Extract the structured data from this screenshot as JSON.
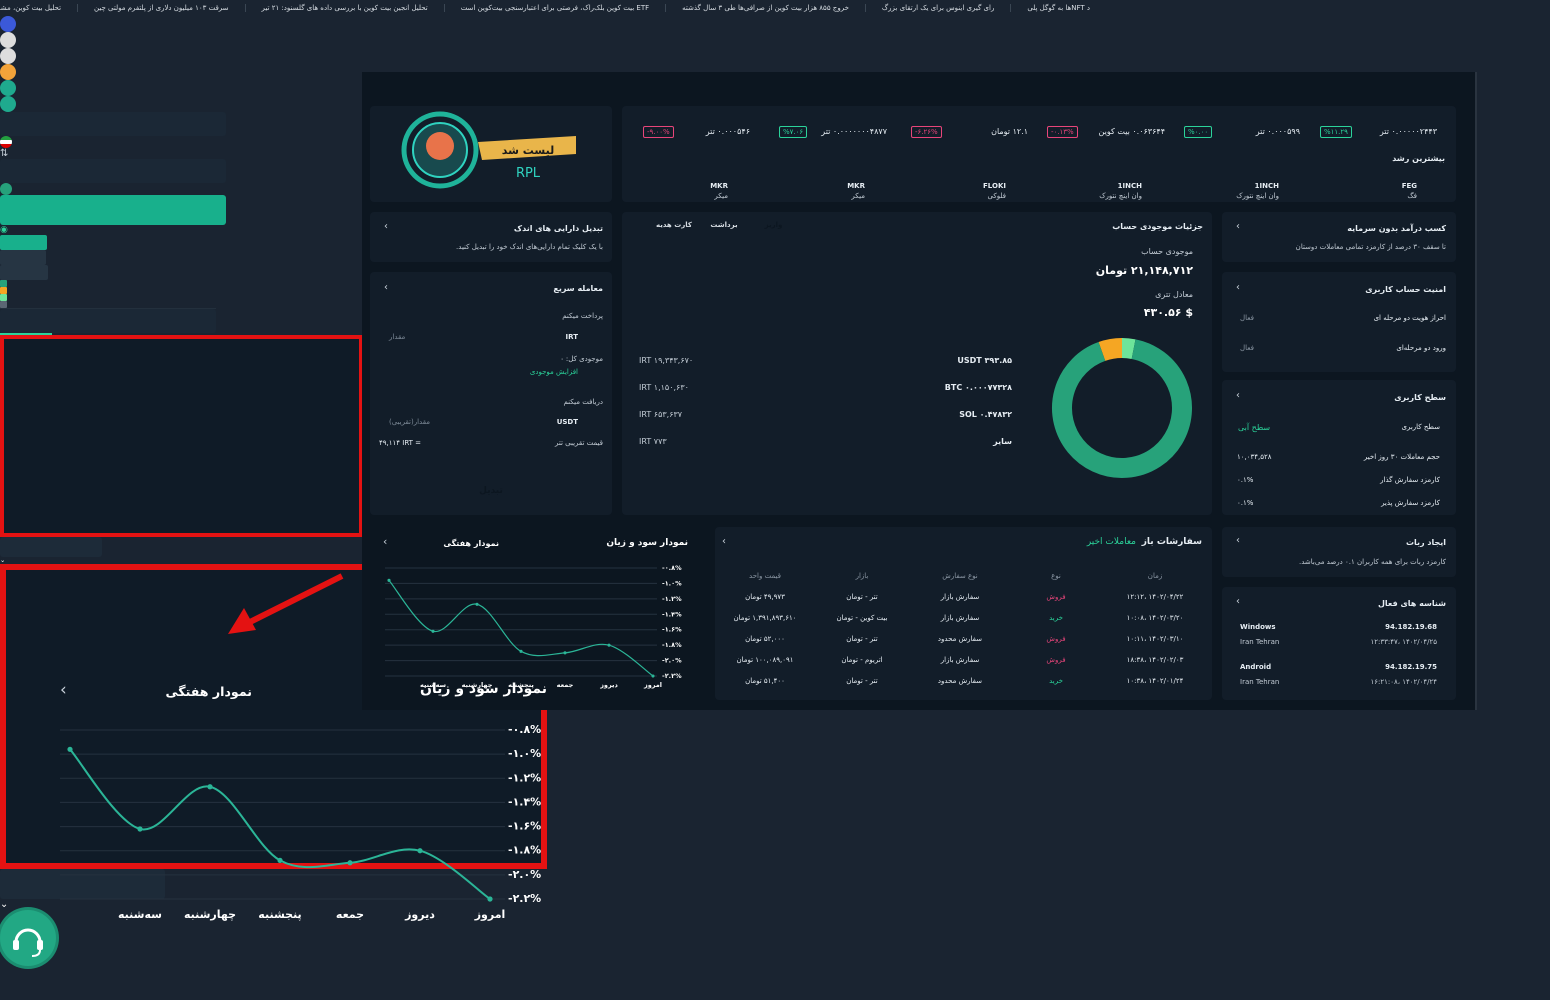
{
  "ticker": [
    "د NFTها به گوگل پلی",
    "رای گیری اینوس برای یک ارتقای بزرگ",
    "خروج ۸۵۵ هزار بیت کوین از صرافی‌ها طی ۳ سال گذشته",
    "ETF بیت کوین بلک‌راک، فرصتی برای اعتبارسنجی بیت‌کوین است",
    "تحلیل انجین بیت کوین با بررسی داده های گلسنود: ۲۱ تیر",
    "سرقت ۱۰۳ میلیون دلاری از پلتفرم مولتی چین",
    "تحلیل بیت کوین، مشاهده نمودار و آخرین تحلیل های تکنیکال"
  ],
  "banner": {
    "badge": "لیست شد",
    "coin": "RPL"
  },
  "market": {
    "prices": [
      {
        "price": "۰.۰۰۰۰۰۲۴۴۳ تتر",
        "change": "%۱۱.۲۹"
      },
      {
        "price": "۰.۰۰۰۵۹۹ تتر",
        "change": "%۰.۰۰"
      },
      {
        "price": "۰.۰۶۳۶۴۴ بیت کوین",
        "change": "-۰.۱۳%"
      },
      {
        "price": "۱۲.۱ تومان",
        "change": "-۶.۲۶%"
      },
      {
        "price": "۰.۰۰۰۰۰۰۰۴۸۷۷ تتر",
        "change": "%۷.۰۶"
      },
      {
        "price": "۰.۰۰۰۵۴۶ تتر",
        "change": "-۹.۰۰%"
      }
    ],
    "title": "بیشترین رشد",
    "coins": [
      {
        "symbol": "FEG",
        "name": "فگ"
      },
      {
        "symbol": "1INCH",
        "name": "وان اینچ نتورک"
      },
      {
        "symbol": "1INCH",
        "name": "وان اینچ نتورک"
      },
      {
        "symbol": "FLOKI",
        "name": "فلوکی"
      },
      {
        "symbol": "MKR",
        "name": "میکر"
      },
      {
        "symbol": "MKR",
        "name": "میکر"
      }
    ]
  },
  "convert": {
    "title": "تبدیل دارایی های اندک",
    "text": "با یک کلیک تمام دارایی‌های اندک خود را تبدیل کنید."
  },
  "trade": {
    "title": "معامله سریع",
    "pay": "پرداخت میکنم",
    "pay_currency": "IRT",
    "amount": "مقدار",
    "balance": "موجودی کل:",
    "balance_value": "۰",
    "deposit_more": "افزایش موجودی",
    "receive": "دریافت میکنم",
    "receive_currency": "USDT",
    "approx_amount": "مقدار(تقریبی)",
    "rate_label": "قیمت تقریبی تتر",
    "rate": "۴۹,۱۱۴ IRT =",
    "button": "تبدیل"
  },
  "account": {
    "title": "جزئیات موجودی حساب",
    "buttons": [
      "واریز",
      "برداشت",
      "کارت هدیه"
    ],
    "balance_label": "موجودی حساب",
    "balance": "۲۱,۱۴۸,۷۱۲ تومان",
    "usdt_label": "معادل تتری",
    "usdt": "$ ۴۳۰.۵۶",
    "holdings": {
      "names": [
        "۳۹۳.۸۵ USDT",
        "۰.۰۰۰۷۷۳۲۸ BTC",
        "۰.۴۷۸۳۲ SOL",
        "سایر"
      ],
      "values": [
        19343670,
        1150630,
        653637,
        773
      ],
      "value_labels": [
        "IRT ۱۹,۳۴۳,۶۷۰",
        "IRT ۱,۱۵۰,۶۳۰",
        "IRT ۶۵۳,۶۳۷",
        "IRT ۷۷۳"
      ],
      "colors": [
        "#27a27a",
        "#f5a623",
        "#6ee59a",
        "#5b6673"
      ]
    }
  },
  "earn": {
    "title": "کسب درآمد بدون سرمایه",
    "text": "تا سقف ۳۰ درصد از کارمزد تمامی معاملات دوستان"
  },
  "security": {
    "title": "امنیت حساب کاربری",
    "rows": [
      [
        "احراز هویت دو مرحله ای",
        "فعال"
      ],
      [
        "ورود دو مرحله‌ای",
        "فعال"
      ]
    ]
  },
  "level": {
    "title": "سطح کاربری",
    "label": "سطح کاربری",
    "value": "سطح آبی",
    "rows": [
      [
        "حجم معاملات ۳۰ روز اخیر",
        "۱۰,۰۳۴,۵۲۸"
      ],
      [
        "کارمزد سفارش گذار",
        "۰.۱%"
      ],
      [
        "کارمزد سفارش پذیر",
        "۰.۱%"
      ]
    ]
  },
  "bot": {
    "title": "ایجاد ربات",
    "text": "کارمزد ربات برای همه کاربران ۰.۱ درصد می‌باشد."
  },
  "sessions": {
    "title": "شناسه های فعال",
    "rows": [
      [
        "Windows",
        "Iran Tehran",
        "94.182.19.68",
        "۱۴۰۲/۰۴/۲۵ ،۱۲:۳۳:۴۷"
      ],
      [
        "Android",
        "Iran Tehran",
        "94.182.19.75",
        "۱۴۰۲/۰۴/۲۴ ،۱۶:۲۱:۰۸"
      ]
    ]
  },
  "orders": {
    "tabs": [
      "سفارشات باز",
      "معاملات اخیر"
    ],
    "headers": [
      "زمان",
      "نوع",
      "نوع سفارش",
      "بازار",
      "قیمت واحد"
    ],
    "rows": [
      [
        "۱۴۰۲/۰۴/۲۲ ،۱۲:۱۲",
        "فروش",
        "سفارش بازار",
        "تتر - تومان",
        "۴۹,۹۷۳ تومان"
      ],
      [
        "۱۴۰۲/۰۳/۲۰ ،۱۰:۰۸",
        "خرید",
        "سفارش بازار",
        "بیت کوین - تومان",
        "۱,۳۹۱,۸۹۳,۶۱۰ تومان"
      ],
      [
        "۱۴۰۲/۰۳/۱۰ ،۱۰:۱۱",
        "فروش",
        "سفارش محدود",
        "تتر - تومان",
        "۵۲,۰۰۰ تومان"
      ],
      [
        "۱۴۰۲/۰۲/۰۳ ،۱۸:۳۸",
        "فروش",
        "سفارش بازار",
        "اتریوم - تومان",
        "۱۰۰,۰۸۹,۰۹۱ تومان"
      ],
      [
        "۱۴۰۲/۰۱/۲۴ ،۱۰:۳۸",
        "خرید",
        "سفارش محدود",
        "تتر - تومان",
        "۵۱,۴۰۰ تومان"
      ]
    ]
  },
  "chart_data": {
    "type": "line",
    "title": "نمودار سود و زیان",
    "period": "نمودار هفتگی",
    "categories": [
      "امروز",
      "دیروز",
      "جمعه",
      "پنجشنبه",
      "چهارشنبه",
      "سه‌شنبه",
      null
    ],
    "values": [
      -2.2,
      -1.8,
      -1.9,
      -1.88,
      -1.27,
      -1.62,
      -0.96
    ],
    "color": "#2bb597",
    "ylim": [
      -2.2,
      -0.8
    ],
    "yticks": [
      {
        "value": -0.8,
        "label": "-۰.۸%"
      },
      {
        "value": -1.0,
        "label": "-۱.۰%"
      },
      {
        "value": -1.2,
        "label": "-۱.۲%"
      },
      {
        "value": -1.4,
        "label": "-۱.۴%"
      },
      {
        "value": -1.6,
        "label": "-۱.۶%"
      },
      {
        "value": -1.8,
        "label": "-۱.۸%"
      },
      {
        "value": -2.0,
        "label": "-۲.۰%"
      },
      {
        "value": -2.2,
        "label": "-۲.۲%"
      }
    ],
    "grid": true
  }
}
